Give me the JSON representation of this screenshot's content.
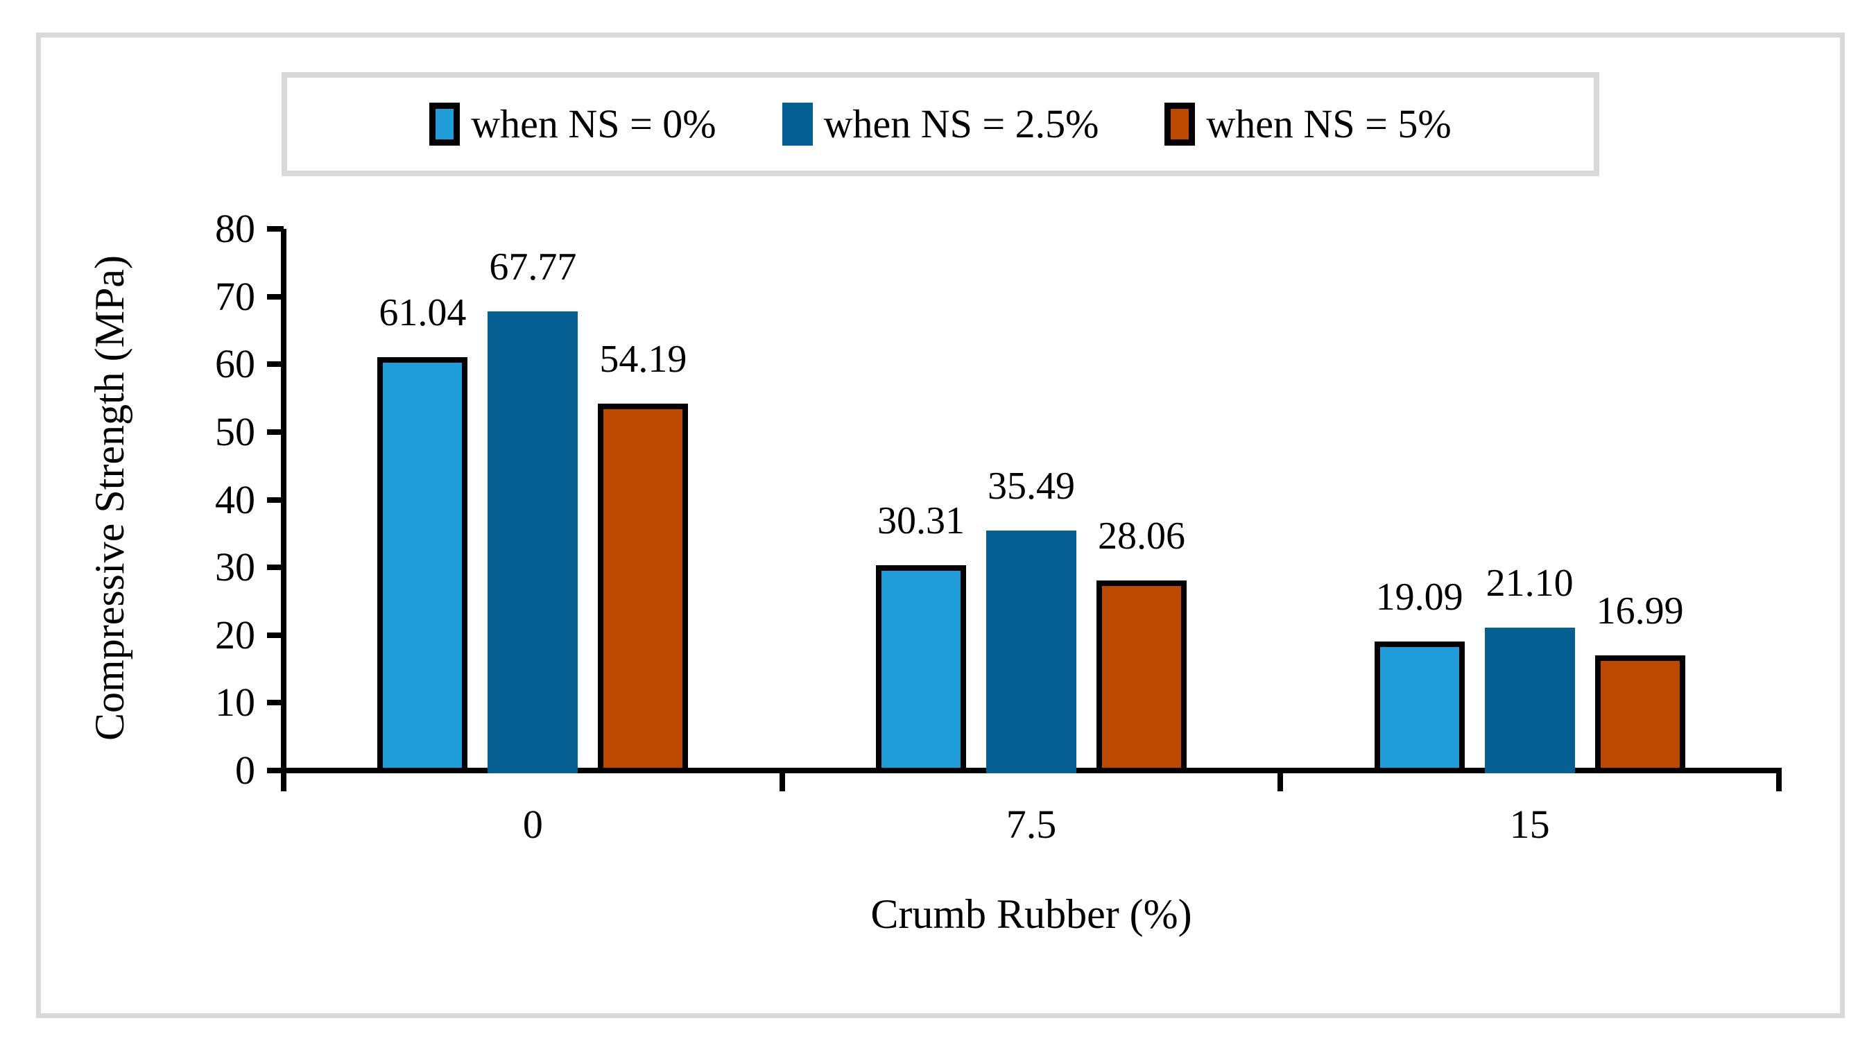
{
  "figure": {
    "background": "#ffffff",
    "frame_color": "#d9d9d9",
    "axis_color": "#000000"
  },
  "chart_data": {
    "type": "bar",
    "title": "",
    "xlabel": "Crumb Rubber (%)",
    "ylabel": "Compressive Strength (MPa)",
    "categories": [
      "0",
      "7.5",
      "15"
    ],
    "series": [
      {
        "name": "when NS = 0%",
        "color": "#209cd8",
        "outlined": true,
        "values": [
          61.04,
          30.31,
          19.09
        ],
        "labels": [
          "61.04",
          "30.31",
          "19.09"
        ]
      },
      {
        "name": "when NS = 2.5%",
        "color": "#055f93",
        "outlined": false,
        "values": [
          67.77,
          35.49,
          21.1
        ],
        "labels": [
          "67.77",
          "35.49",
          "21.10"
        ]
      },
      {
        "name": "when NS = 5%",
        "color": "#bb4a00",
        "outlined": true,
        "values": [
          54.19,
          28.06,
          16.99
        ],
        "labels": [
          "54.19",
          "28.06",
          "16.99"
        ]
      }
    ],
    "ylim": [
      0,
      80
    ],
    "yticks": [
      0,
      10,
      20,
      30,
      40,
      50,
      60,
      70,
      80
    ],
    "grid": false,
    "legend_position": "top",
    "bar_outline_color": "#000000"
  }
}
